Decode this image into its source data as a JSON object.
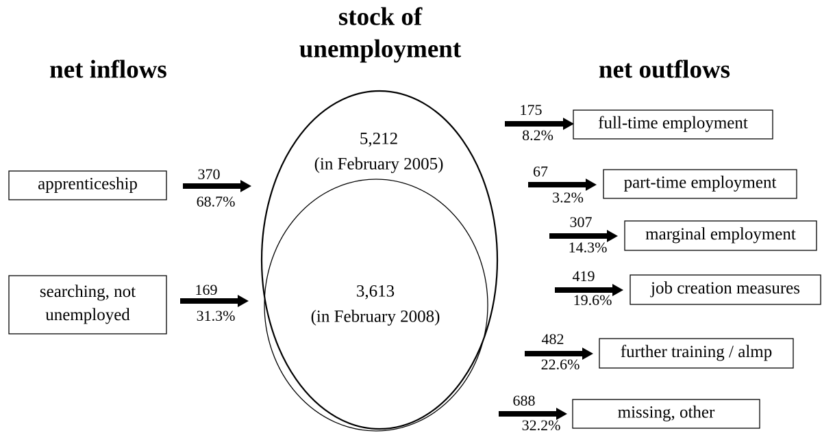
{
  "title": [
    "stock of",
    "unemployment"
  ],
  "inflows": {
    "heading": "net inflows",
    "items": [
      {
        "label": [
          "apprenticeship"
        ],
        "count": "370",
        "share": "68.7%"
      },
      {
        "label": [
          "searching, not",
          "unemployed"
        ],
        "count": "169",
        "share": "31.3%"
      }
    ]
  },
  "stock": {
    "outer": {
      "value": "5,212",
      "period": "(in February 2005)"
    },
    "inner": {
      "value": "3,613",
      "period": "(in February 2008)"
    }
  },
  "outflows": {
    "heading": "net outflows",
    "items": [
      {
        "label": "full-time employment",
        "count": "175",
        "share": "8.2%"
      },
      {
        "label": "part-time employment",
        "count": "67",
        "share": "3.2%"
      },
      {
        "label": "marginal employment",
        "count": "307",
        "share": "14.3%"
      },
      {
        "label": "job creation measures",
        "count": "419",
        "share": "19.6%"
      },
      {
        "label": "further training / almp",
        "count": "482",
        "share": "22.6%"
      },
      {
        "label": "missing, other",
        "count": "688",
        "share": "32.2%"
      }
    ]
  }
}
